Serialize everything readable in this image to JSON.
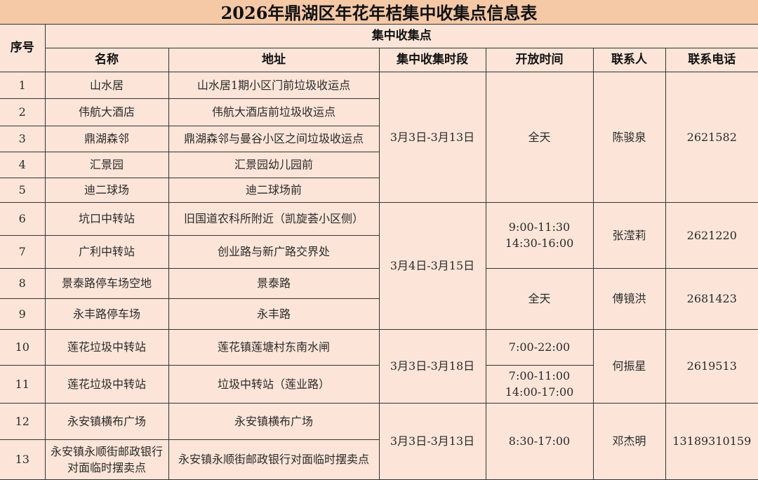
{
  "title": "2026年鼎湖区年花年桔集中收集点信息表",
  "headers": {
    "index": "序号",
    "group": "集中收集点",
    "name": "名称",
    "address": "地址",
    "period": "集中收集时段",
    "hours": "开放时间",
    "contact": "联系人",
    "phone": "联系电话"
  },
  "rows": [
    {
      "index": "1",
      "name": "山水居",
      "address": "山水居1期小区门前垃圾收运点"
    },
    {
      "index": "2",
      "name": "伟航大酒店",
      "address": "伟航大酒店前垃圾收运点"
    },
    {
      "index": "3",
      "name": "鼎湖森邻",
      "address": "鼎湖森邻与曼谷小区之间垃圾收运点"
    },
    {
      "index": "4",
      "name": "汇景园",
      "address": "汇景园幼儿园前"
    },
    {
      "index": "5",
      "name": "迪二球场",
      "address": "迪二球场前"
    },
    {
      "index": "6",
      "name": "坑口中转站",
      "address": "旧国道农科所附近（凯旋荟小区侧）"
    },
    {
      "index": "7",
      "name": "广利中转站",
      "address": "创业路与新广路交界处"
    },
    {
      "index": "8",
      "name": "景泰路停车场空地",
      "address": "景泰路"
    },
    {
      "index": "9",
      "name": "永丰路停车场",
      "address": "永丰路"
    },
    {
      "index": "10",
      "name": "莲花垃圾中转站",
      "address": "莲花镇莲塘村东南水闸"
    },
    {
      "index": "11",
      "name": "莲花垃圾中转站",
      "address": "垃圾中转站（莲业路）"
    },
    {
      "index": "12",
      "name": "永安镇横布广场",
      "address": "永安镇横布广场"
    },
    {
      "index": "13",
      "name": "永安镇永顺街邮政银行对面临时摆卖点",
      "address": "永安镇永顺街邮政银行对面临时摆卖点"
    }
  ],
  "periods": [
    {
      "text": "3月3日-3月13日",
      "span": 5
    },
    {
      "text": "3月4日-3月15日",
      "span": 4
    },
    {
      "text": "3月3日-3月18日",
      "span": 2
    },
    {
      "text": "3月3日-3月13日",
      "span": 2
    }
  ],
  "hours": [
    {
      "text": "全天",
      "span": 5
    },
    {
      "text": "9:00-11:30\n14:30-16:00",
      "span": 2
    },
    {
      "text": "全天",
      "span": 2
    },
    {
      "text": "7:00-22:00",
      "span": 1
    },
    {
      "text": "7:00-11:00\n14:00-17:00",
      "span": 1
    },
    {
      "text": "8:30-17:00",
      "span": 2
    }
  ],
  "contacts": [
    {
      "name": "陈骏泉",
      "phone": "2621582",
      "span": 5
    },
    {
      "name": "张滢莉",
      "phone": "2621220",
      "span": 2
    },
    {
      "name": "傅镜洪",
      "phone": "2681423",
      "span": 2
    },
    {
      "name": "何振星",
      "phone": "2619513",
      "span": 2
    },
    {
      "name": "邓杰明",
      "phone": "13189310159",
      "span": 2
    }
  ]
}
